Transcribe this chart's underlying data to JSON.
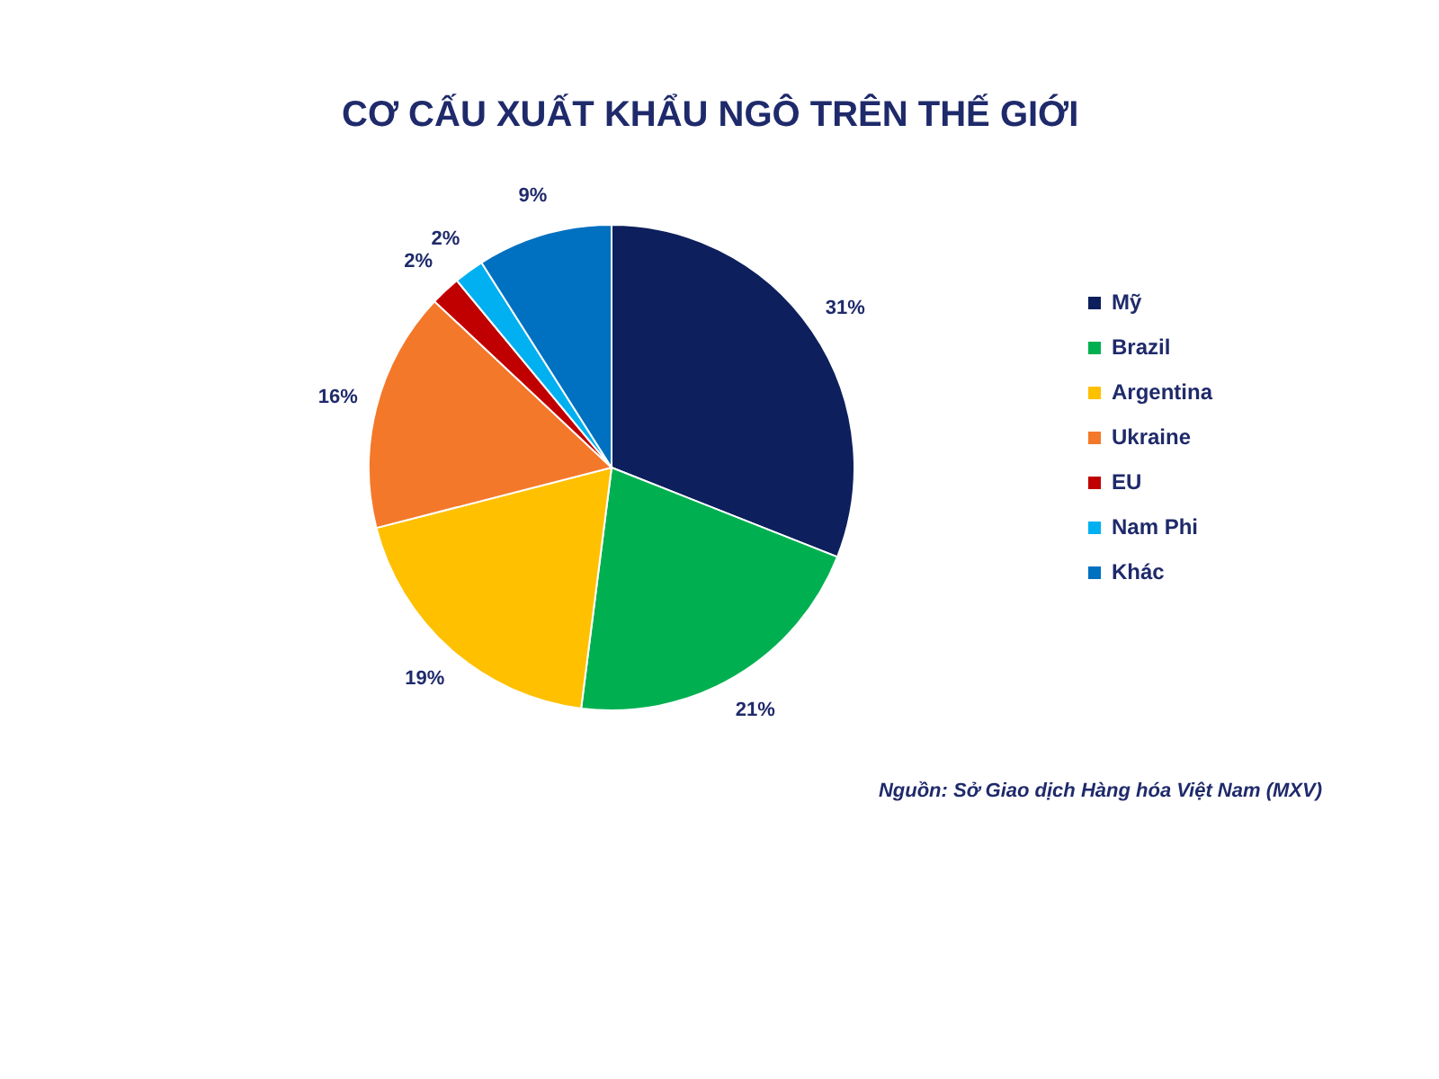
{
  "chart_data": {
    "type": "pie",
    "title": "CƠ CẤU XUẤT KHẨU NGÔ TRÊN THẾ GIỚI",
    "categories": [
      "Mỹ",
      "Brazil",
      "Argentina",
      "Ukraine",
      "EU",
      "Nam Phi",
      "Khác"
    ],
    "values": [
      31,
      21,
      19,
      16,
      2,
      2,
      9
    ],
    "colors": [
      "#0d1f5c",
      "#00b050",
      "#ffc000",
      "#f4782a",
      "#c00000",
      "#00b0f0",
      "#0070c0"
    ],
    "value_labels": [
      "31%",
      "21%",
      "19%",
      "16%",
      "2%",
      "2%",
      "9%"
    ],
    "legend": "right",
    "annotations": [
      "Nguồn: Sở Giao dịch Hàng hóa Việt Nam (MXV)"
    ]
  }
}
